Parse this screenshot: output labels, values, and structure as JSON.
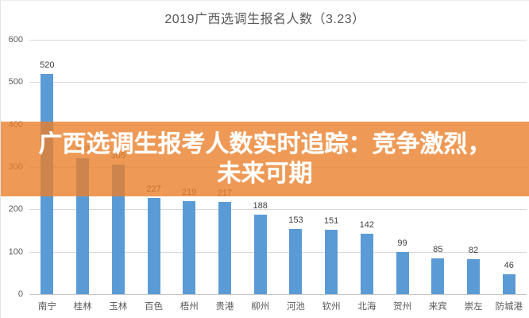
{
  "title": "2019广西选调生报名人数（3.23）",
  "overlay": {
    "line1": "广西选调生报考人数实时追踪：竞争激烈，",
    "line2": "未来可期",
    "bg_color": "rgba(234,128,43,0.8)",
    "text_color": "#ffffff"
  },
  "chart_data": {
    "type": "bar",
    "title": "2019广西选调生报名人数（3.23）",
    "categories": [
      "南宁",
      "桂林",
      "玉林",
      "百色",
      "梧州",
      "贵港",
      "柳州",
      "河池",
      "钦州",
      "北海",
      "贺州",
      "来宾",
      "崇左",
      "防城港"
    ],
    "values": [
      520,
      320,
      305,
      227,
      219,
      217,
      188,
      153,
      151,
      142,
      99,
      85,
      82,
      46
    ],
    "value_labels_hidden_by_banner": [
      "桂林",
      "玉林"
    ],
    "xlabel": "",
    "ylabel": "",
    "ylim": [
      0,
      600
    ],
    "yticks": [
      600,
      500,
      400,
      300,
      200,
      100,
      0
    ],
    "grid": true,
    "legend": false,
    "bar_color": "#5b9bd5",
    "gridline_color": "#d9d9d9",
    "axis_line_color": "#c6c6c6",
    "value_label_color": "#404040",
    "tick_label_color": "#595959",
    "title_color": "#595959"
  }
}
